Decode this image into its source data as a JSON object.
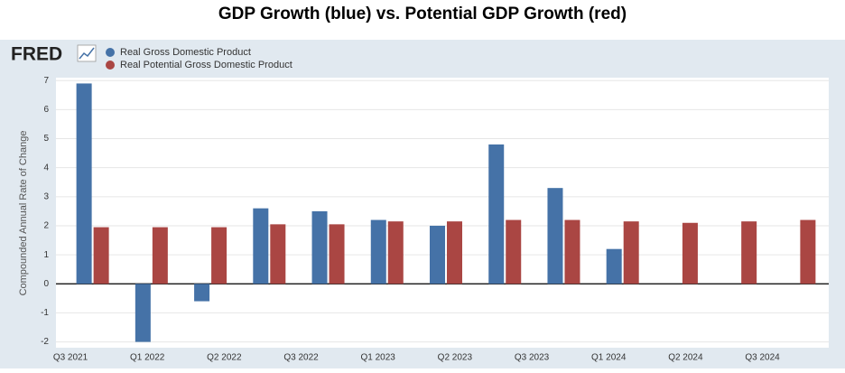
{
  "chart_data": {
    "type": "bar",
    "title": "GDP Growth (blue) vs. Potential GDP Growth (red)",
    "logo": "FRED",
    "y_label": "Compounded Annual Rate of Change",
    "categories": [
      null,
      null,
      null,
      null,
      null,
      null,
      null,
      null,
      null,
      null,
      null,
      null,
      null
    ],
    "x_tick_labels": [
      "Q3 2021",
      "Q1 2022",
      "Q2 2022",
      "Q3 2022",
      "Q1 2023",
      "Q2 2023",
      "Q3 2023",
      "Q1 2024",
      "Q2 2024",
      "Q3 2024"
    ],
    "series": [
      {
        "name": "Real Gross Domestic Product",
        "color": "#4572a7",
        "values": [
          6.9,
          -2.0,
          -0.6,
          2.6,
          2.5,
          2.2,
          2.0,
          4.8,
          3.3,
          1.2,
          null,
          null,
          null
        ]
      },
      {
        "name": "Real Potential Gross Domestic Product",
        "color": "#aa4643",
        "values": [
          1.95,
          1.95,
          1.95,
          2.05,
          2.05,
          2.15,
          2.15,
          2.2,
          2.2,
          2.15,
          2.1,
          2.15,
          2.2
        ]
      }
    ],
    "ylim": [
      -2.2,
      7.1
    ],
    "yticks": [
      -2,
      -1,
      0,
      1,
      2,
      3,
      4,
      5,
      6,
      7
    ],
    "grid": true
  }
}
